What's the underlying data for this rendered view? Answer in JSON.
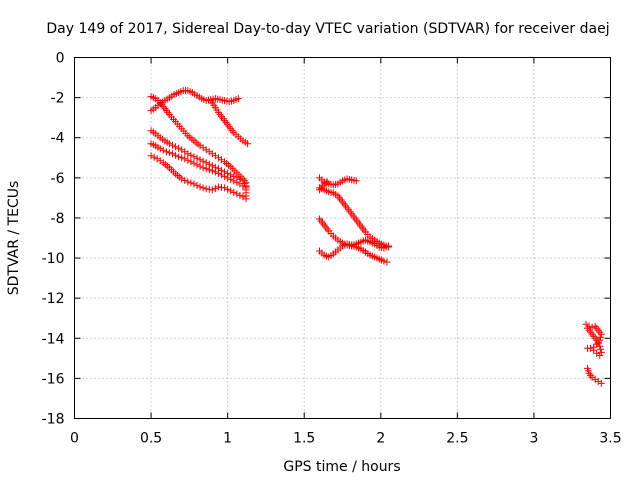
{
  "chart_data": {
    "type": "scatter",
    "title": "Day 149 of 2017, Sidereal Day-to-day VTEC variation (SDTVAR) for receiver daej",
    "xlabel": "GPS time / hours",
    "ylabel": "SDTVAR / TECUs",
    "xlim": [
      0,
      3.5
    ],
    "ylim": [
      -18,
      0
    ],
    "xticks": [
      "0",
      "0.5",
      "1",
      "1.5",
      "2",
      "2.5",
      "3",
      "3.5"
    ],
    "yticks": [
      "0",
      "-2",
      "-4",
      "-6",
      "-8",
      "-10",
      "-12",
      "-14",
      "-16",
      "-18"
    ],
    "grid": true,
    "marker": "+",
    "color": "#ff0000",
    "series": [
      {
        "tracks": [
          [
            [
              0.5,
              -1.95
            ],
            [
              0.53,
              -2.05
            ],
            [
              0.56,
              -2.25
            ],
            [
              0.59,
              -2.55
            ],
            [
              0.62,
              -2.85
            ],
            [
              0.66,
              -3.2
            ],
            [
              0.7,
              -3.55
            ],
            [
              0.74,
              -3.9
            ],
            [
              0.78,
              -4.15
            ],
            [
              0.82,
              -4.4
            ],
            [
              0.86,
              -4.6
            ],
            [
              0.9,
              -4.8
            ],
            [
              0.94,
              -5.0
            ],
            [
              0.98,
              -5.2
            ],
            [
              1.02,
              -5.45
            ],
            [
              1.06,
              -5.75
            ],
            [
              1.1,
              -6.05
            ],
            [
              1.12,
              -6.25
            ]
          ],
          [
            [
              0.5,
              -2.65
            ],
            [
              0.53,
              -2.5
            ],
            [
              0.56,
              -2.3
            ],
            [
              0.59,
              -2.15
            ],
            [
              0.62,
              -2.0
            ],
            [
              0.65,
              -1.85
            ],
            [
              0.68,
              -1.75
            ],
            [
              0.71,
              -1.65
            ],
            [
              0.74,
              -1.65
            ],
            [
              0.77,
              -1.75
            ],
            [
              0.8,
              -1.9
            ],
            [
              0.83,
              -2.05
            ],
            [
              0.86,
              -2.15
            ],
            [
              0.89,
              -2.1
            ],
            [
              0.92,
              -2.05
            ],
            [
              0.95,
              -2.1
            ],
            [
              0.98,
              -2.15
            ],
            [
              1.01,
              -2.2
            ],
            [
              1.04,
              -2.15
            ],
            [
              1.07,
              -2.05
            ]
          ],
          [
            [
              0.89,
              -2.15
            ],
            [
              0.92,
              -2.5
            ],
            [
              0.95,
              -2.85
            ],
            [
              0.98,
              -3.15
            ],
            [
              1.01,
              -3.45
            ],
            [
              1.04,
              -3.75
            ],
            [
              1.07,
              -3.95
            ],
            [
              1.1,
              -4.15
            ],
            [
              1.13,
              -4.3
            ]
          ],
          [
            [
              0.5,
              -3.65
            ],
            [
              0.53,
              -3.8
            ],
            [
              0.56,
              -4.0
            ],
            [
              0.59,
              -4.15
            ],
            [
              0.62,
              -4.3
            ],
            [
              0.66,
              -4.45
            ],
            [
              0.7,
              -4.6
            ],
            [
              0.74,
              -4.8
            ],
            [
              0.78,
              -4.95
            ],
            [
              0.82,
              -5.1
            ],
            [
              0.86,
              -5.25
            ],
            [
              0.9,
              -5.4
            ],
            [
              0.94,
              -5.55
            ],
            [
              0.98,
              -5.7
            ],
            [
              1.02,
              -5.85
            ],
            [
              1.06,
              -6.0
            ],
            [
              1.1,
              -6.15
            ],
            [
              1.12,
              -6.4
            ]
          ],
          [
            [
              0.5,
              -4.3
            ],
            [
              0.53,
              -4.4
            ],
            [
              0.56,
              -4.55
            ],
            [
              0.6,
              -4.7
            ],
            [
              0.64,
              -4.8
            ],
            [
              0.68,
              -4.95
            ],
            [
              0.72,
              -5.05
            ],
            [
              0.76,
              -5.2
            ],
            [
              0.8,
              -5.35
            ],
            [
              0.84,
              -5.5
            ],
            [
              0.88,
              -5.6
            ],
            [
              0.92,
              -5.7
            ],
            [
              0.96,
              -5.85
            ],
            [
              1.0,
              -6.0
            ],
            [
              1.04,
              -6.15
            ],
            [
              1.08,
              -6.3
            ],
            [
              1.12,
              -6.5
            ]
          ],
          [
            [
              0.5,
              -4.9
            ],
            [
              0.54,
              -5.05
            ],
            [
              0.58,
              -5.25
            ],
            [
              0.62,
              -5.5
            ],
            [
              0.66,
              -5.8
            ],
            [
              0.7,
              -6.05
            ],
            [
              0.74,
              -6.2
            ],
            [
              0.78,
              -6.3
            ],
            [
              0.82,
              -6.45
            ],
            [
              0.86,
              -6.55
            ],
            [
              0.9,
              -6.6
            ],
            [
              0.94,
              -6.45
            ],
            [
              0.98,
              -6.5
            ],
            [
              1.02,
              -6.65
            ],
            [
              1.06,
              -6.8
            ],
            [
              1.1,
              -6.95
            ],
            [
              1.12,
              -7.05
            ]
          ],
          [
            [
              1.12,
              -6.25
            ],
            [
              1.12,
              -6.6
            ],
            [
              1.12,
              -6.9
            ]
          ]
        ]
      },
      {
        "tracks": [
          [
            [
              1.6,
              -6.0
            ],
            [
              1.63,
              -6.2
            ],
            [
              1.66,
              -6.3
            ],
            [
              1.69,
              -6.35
            ],
            [
              1.72,
              -6.3
            ],
            [
              1.75,
              -6.15
            ],
            [
              1.78,
              -6.05
            ],
            [
              1.81,
              -6.1
            ],
            [
              1.84,
              -6.15
            ]
          ],
          [
            [
              1.6,
              -6.5
            ],
            [
              1.63,
              -6.6
            ],
            [
              1.66,
              -6.7
            ],
            [
              1.69,
              -6.75
            ],
            [
              1.72,
              -6.9
            ],
            [
              1.75,
              -7.2
            ],
            [
              1.78,
              -7.5
            ],
            [
              1.81,
              -7.8
            ],
            [
              1.84,
              -8.1
            ],
            [
              1.87,
              -8.4
            ],
            [
              1.9,
              -8.7
            ],
            [
              1.93,
              -8.95
            ],
            [
              1.96,
              -9.1
            ],
            [
              1.99,
              -9.25
            ],
            [
              2.02,
              -9.35
            ],
            [
              2.05,
              -9.45
            ]
          ],
          [
            [
              1.6,
              -8.05
            ],
            [
              1.63,
              -8.35
            ],
            [
              1.66,
              -8.65
            ],
            [
              1.69,
              -8.9
            ],
            [
              1.72,
              -9.1
            ],
            [
              1.75,
              -9.25
            ],
            [
              1.78,
              -9.35
            ],
            [
              1.81,
              -9.4
            ],
            [
              1.84,
              -9.45
            ],
            [
              1.87,
              -9.55
            ],
            [
              1.9,
              -9.7
            ],
            [
              1.93,
              -9.85
            ],
            [
              1.96,
              -9.95
            ],
            [
              1.99,
              -10.05
            ],
            [
              2.02,
              -10.15
            ],
            [
              2.04,
              -10.2
            ]
          ],
          [
            [
              1.6,
              -9.65
            ],
            [
              1.63,
              -9.85
            ],
            [
              1.66,
              -9.95
            ],
            [
              1.69,
              -9.8
            ],
            [
              1.72,
              -9.6
            ],
            [
              1.75,
              -9.4
            ],
            [
              1.78,
              -9.3
            ],
            [
              1.81,
              -9.35
            ],
            [
              1.84,
              -9.3
            ],
            [
              1.87,
              -9.2
            ],
            [
              1.9,
              -9.1
            ],
            [
              1.93,
              -9.2
            ],
            [
              1.96,
              -9.3
            ],
            [
              1.99,
              -9.45
            ],
            [
              2.02,
              -9.5
            ],
            [
              2.05,
              -9.4
            ]
          ],
          [
            [
              1.6,
              -6.6
            ],
            [
              1.62,
              -6.4
            ],
            [
              1.65,
              -6.2
            ]
          ]
        ]
      },
      {
        "tracks": [
          [
            [
              3.34,
              -13.3
            ],
            [
              3.36,
              -13.4
            ],
            [
              3.38,
              -13.45
            ],
            [
              3.4,
              -13.4
            ],
            [
              3.42,
              -13.6
            ],
            [
              3.44,
              -13.8
            ],
            [
              3.43,
              -14.1
            ],
            [
              3.41,
              -14.3
            ],
            [
              3.39,
              -14.45
            ],
            [
              3.37,
              -14.5
            ],
            [
              3.35,
              -14.5
            ]
          ],
          [
            [
              3.35,
              -13.5
            ],
            [
              3.37,
              -13.7
            ],
            [
              3.39,
              -13.9
            ],
            [
              3.41,
              -14.1
            ],
            [
              3.43,
              -14.4
            ],
            [
              3.44,
              -14.7
            ],
            [
              3.43,
              -14.85
            ],
            [
              3.41,
              -14.75
            ],
            [
              3.39,
              -14.6
            ]
          ],
          [
            [
              3.35,
              -15.5
            ],
            [
              3.36,
              -15.75
            ],
            [
              3.38,
              -15.95
            ],
            [
              3.4,
              -16.05
            ],
            [
              3.42,
              -16.15
            ],
            [
              3.44,
              -16.25
            ]
          ]
        ]
      }
    ]
  }
}
